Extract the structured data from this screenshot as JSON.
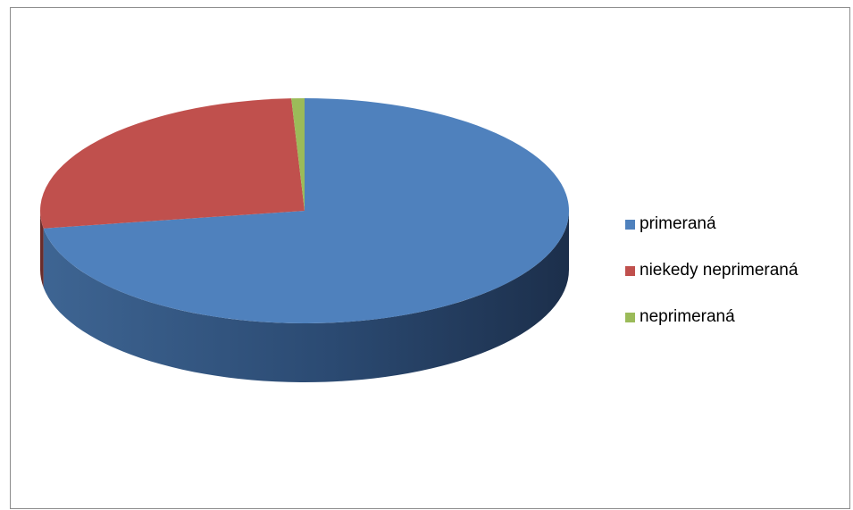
{
  "chart_data": {
    "type": "pie",
    "style": "3d",
    "title": "",
    "categories": [
      "primeraná",
      "niekedy neprimeraná",
      "neprimeraná"
    ],
    "values": [
      72.5,
      26.7,
      0.8
    ],
    "colors": [
      "#4f81bd",
      "#c0504d",
      "#9bbb59"
    ],
    "legend": {
      "position": "right",
      "entries": [
        "primeraná",
        "niekedy neprimeraná",
        "neprimeraná"
      ]
    }
  }
}
